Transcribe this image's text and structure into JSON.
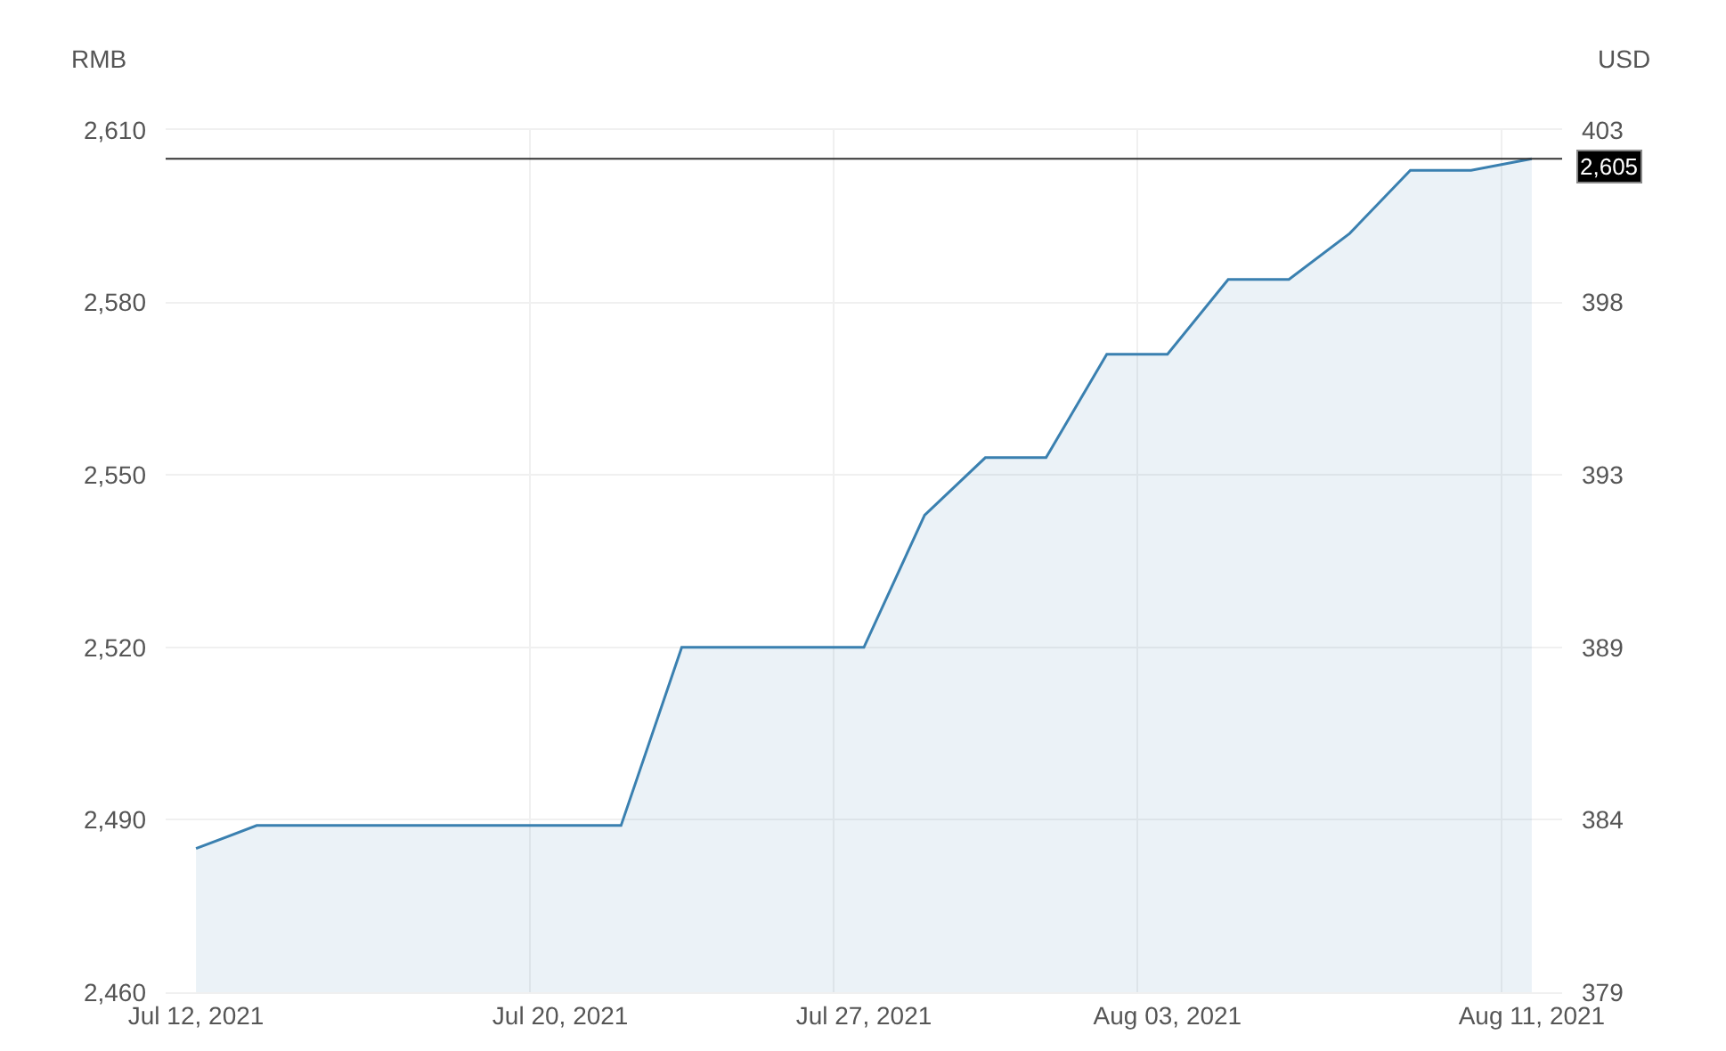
{
  "chart_data": {
    "type": "area",
    "categories": [
      "Jul 12, 2021",
      null,
      null,
      null,
      null,
      null,
      "Jul 20, 2021",
      null,
      null,
      null,
      null,
      "Jul 27, 2021",
      null,
      null,
      null,
      null,
      "Aug 03, 2021",
      null,
      null,
      null,
      null,
      null,
      "Aug 11, 2021"
    ],
    "series": [
      {
        "color": "#3a80b0",
        "values": [
          2485,
          2489,
          2489,
          2489,
          2489,
          2489,
          2489,
          2489,
          2520,
          2520,
          2520,
          2520,
          2543,
          2553,
          2553,
          2571,
          2571,
          2584,
          2584,
          2592,
          2603,
          2603,
          2605
        ]
      }
    ],
    "ylabel": "RMB",
    "y2label": "USD",
    "ylim": [
      2460,
      2610
    ],
    "yticks": [
      {
        "value": 2460,
        "label": "2,460"
      },
      {
        "value": 2490,
        "label": "2,490"
      },
      {
        "value": 2520,
        "label": "2,520"
      },
      {
        "value": 2550,
        "label": "2,550"
      },
      {
        "value": 2580,
        "label": "2,580"
      },
      {
        "value": 2610,
        "label": "2,610"
      }
    ],
    "y2lim": [
      379,
      403
    ],
    "y2ticks": [
      379,
      {
        "value": 383.8,
        "label": "384"
      },
      {
        "value": 388.6,
        "label": "389"
      },
      {
        "value": 393.4,
        "label": "393"
      },
      {
        "value": 398.2,
        "label": "398"
      },
      403
    ],
    "ref_lines": [
      {
        "axis": "y",
        "value": 2605,
        "label": "2,605",
        "color": "#333333",
        "line_style": "solid"
      }
    ],
    "grid": true
  }
}
